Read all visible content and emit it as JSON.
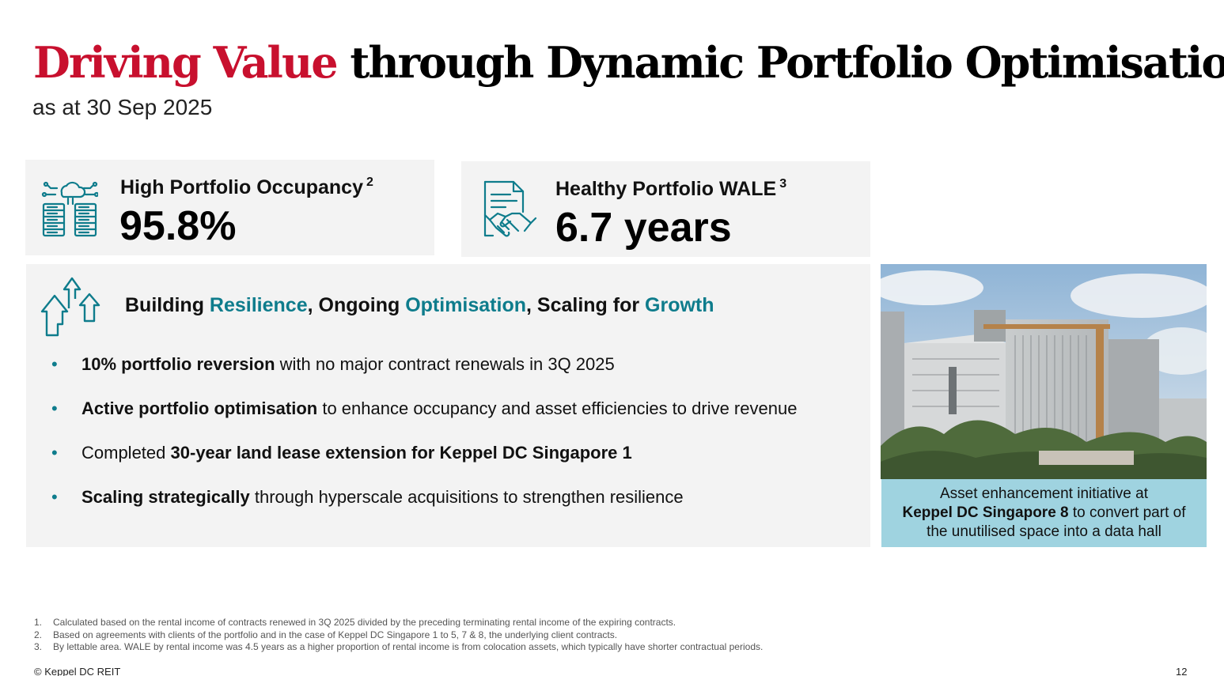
{
  "header": {
    "title_highlight": "Driving Value",
    "title_rest": "through Dynamic Portfolio Optimisation",
    "subtitle": "as at 30 Sep 2025"
  },
  "kpis": [
    {
      "label": "High Portfolio Occupancy",
      "footnote": "2",
      "value": "95.8%",
      "icon": "data-center-cloud-icon"
    },
    {
      "label": "Healthy Portfolio WALE",
      "footnote": "3",
      "value": "6.7 years",
      "icon": "contract-handshake-icon"
    }
  ],
  "panel": {
    "icon": "growth-arrows-icon",
    "heading": {
      "p1": "Building ",
      "h1": "Resilience",
      "p2": ", Ongoing ",
      "h2": "Optimisation",
      "p3": ", Scaling for ",
      "h3": "Growth"
    },
    "bullets": [
      {
        "pre": "",
        "bold": "10% portfolio reversion",
        "post": " with no major contract renewals in 3Q 2025"
      },
      {
        "pre": "",
        "bold": "Active portfolio optimisation",
        "post": " to enhance occupancy and asset efficiencies to drive revenue"
      },
      {
        "pre": "Completed ",
        "bold": "30-year land lease extension for Keppel DC Singapore 1",
        "post": ""
      },
      {
        "pre": "",
        "bold": "Scaling strategically",
        "post": " through hyperscale acquisitions to strengthen resilience"
      }
    ]
  },
  "photo_caption": {
    "line1": "Asset enhancement initiative at",
    "bold": "Keppel DC Singapore 8",
    "rest": " to convert part of",
    "line3": "the unutilised space into a data hall"
  },
  "footnotes": [
    {
      "num": "1.",
      "text": "Calculated based on the rental income of contracts renewed in 3Q 2025 divided by the preceding terminating rental income of the expiring contracts."
    },
    {
      "num": "2.",
      "text": "Based on agreements with clients of the portfolio and in the case of Keppel DC Singapore 1 to 5, 7 & 8, the underlying client contracts."
    },
    {
      "num": "3.",
      "text": "By lettable area. WALE by rental income was 4.5 years as a higher proportion of rental income is from colocation assets, which typically have shorter contractual periods."
    }
  ],
  "footer": {
    "copyright": "© Keppel DC REIT",
    "page": "12"
  },
  "colors": {
    "accent_red": "#c8102e",
    "accent_teal": "#0e7c8c",
    "card_bg": "#f3f3f3",
    "caption_bg": "#9fd3e0"
  }
}
